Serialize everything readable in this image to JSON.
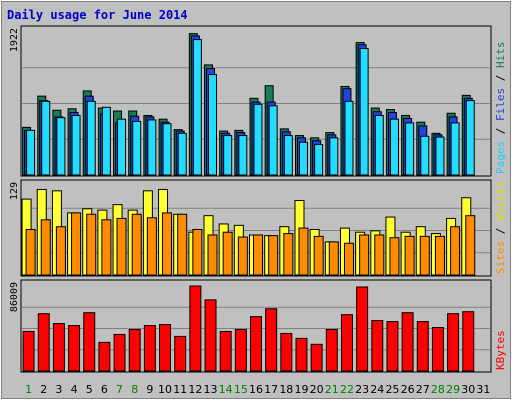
{
  "title": "Daily usage for June 2014",
  "colors": {
    "background": "#c0c0c0",
    "title": "#0000cc",
    "hits": "#1a7a5a",
    "files": "#2244dd",
    "pages": "#22ddff",
    "visits": "#ffff33",
    "sites": "#ff8c00",
    "kbytes": "#ff0000",
    "day_label": "#006633",
    "weekend_label": "#008000"
  },
  "legends": {
    "top": [
      {
        "text": "Pages",
        "color": "#22ccee"
      },
      {
        "text": "Files",
        "color": "#2244dd"
      },
      {
        "text": "Hits",
        "color": "#1a7a5a"
      }
    ],
    "middle": [
      {
        "text": "Sites",
        "color": "#ff8c00"
      },
      {
        "text": "Visits",
        "color": "#dddd00"
      }
    ],
    "bottom": [
      {
        "text": "KBytes",
        "color": "#ff0000"
      }
    ]
  },
  "chart_data": {
    "type": "bar",
    "title": "Daily usage for June 2014",
    "categories": [
      "1",
      "2",
      "3",
      "4",
      "5",
      "6",
      "7",
      "8",
      "9",
      "10",
      "11",
      "12",
      "13",
      "14",
      "15",
      "16",
      "17",
      "18",
      "19",
      "20",
      "21",
      "22",
      "23",
      "24",
      "25",
      "26",
      "27",
      "28",
      "29",
      "30",
      "31"
    ],
    "weekend_days": [
      "1",
      "7",
      "8",
      "14",
      "15",
      "21",
      "22",
      "28",
      "29"
    ],
    "panels": [
      {
        "name": "top",
        "max_label": "1922",
        "ylim": [
          0,
          1922
        ],
        "series": [
          {
            "name": "Hits",
            "values": [
              640,
              1060,
              870,
              890,
              1130,
              900,
              860,
              860,
              800,
              750,
              610,
              1900,
              1480,
              590,
              600,
              1030,
              1200,
              620,
              530,
              500,
              570,
              1190,
              1780,
              900,
              880,
              800,
              710,
              560,
              830,
              1070,
              0
            ]
          },
          {
            "name": "Files",
            "values": [
              600,
              1000,
              780,
              840,
              1060,
              820,
              700,
              790,
              780,
              710,
              590,
              1870,
              1430,
              560,
              570,
              980,
              980,
              580,
              500,
              460,
              540,
              1160,
              1750,
              850,
              840,
              760,
              660,
              540,
              780,
              1030,
              0
            ]
          },
          {
            "name": "Pages",
            "values": [
              600,
              990,
              770,
              800,
              990,
              910,
              750,
              720,
              740,
              690,
              560,
              1820,
              1350,
              530,
              530,
              950,
              930,
              530,
              440,
              410,
              500,
              990,
              1700,
              800,
              750,
              700,
              520,
              510,
              700,
              1000,
              0
            ]
          }
        ]
      },
      {
        "name": "middle",
        "max_label": "129",
        "ylim": [
          0,
          129
        ],
        "series": [
          {
            "name": "Visits",
            "values": [
              110,
              124,
              122,
              90,
              96,
              94,
              102,
              94,
              122,
              124,
              88,
              62,
              86,
              74,
              72,
              58,
              57,
              70,
              108,
              66,
              48,
              68,
              62,
              64,
              84,
              62,
              70,
              60,
              82,
              112,
              0
            ]
          },
          {
            "name": "Sites",
            "values": [
              66,
              80,
              70,
              90,
              88,
              80,
              82,
              88,
              83,
              90,
              88,
              66,
              58,
              62,
              55,
              58,
              57,
              60,
              68,
              56,
              48,
              46,
              58,
              58,
              54,
              56,
              56,
              56,
              70,
              86,
              0
            ]
          }
        ]
      },
      {
        "name": "bottom",
        "max_label": "86009",
        "ylim": [
          0,
          86009
        ],
        "series": [
          {
            "name": "KBytes",
            "values": [
              40000,
              58000,
              48000,
              46000,
              59000,
              29000,
              37000,
              42000,
              46000,
              47000,
              35000,
              86000,
              72000,
              40000,
              42000,
              55000,
              63000,
              38000,
              33000,
              27000,
              42000,
              57000,
              85000,
              51000,
              50000,
              59000,
              50000,
              44000,
              58000,
              60000,
              0
            ]
          }
        ]
      }
    ]
  }
}
